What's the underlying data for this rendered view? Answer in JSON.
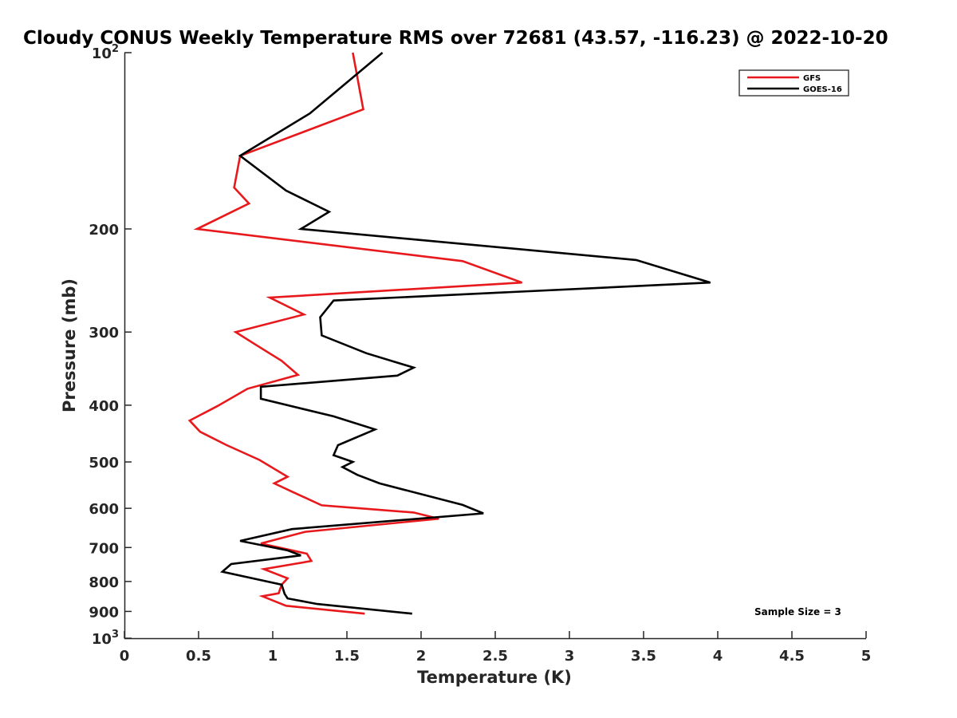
{
  "chart_data": {
    "type": "line",
    "title": "Cloudy CONUS Weekly Temperature RMS over 72681 (43.57, -116.23) @ 2022-10-20",
    "xlabel": "Temperature (K)",
    "ylabel": "Pressure (mb)",
    "xlim": [
      0,
      5
    ],
    "ylim": [
      100,
      1000
    ],
    "yscale": "log",
    "yreversed": true,
    "grid": false,
    "legend_position": "top-right",
    "x_ticks": [
      "0",
      "0.5",
      "1",
      "1.5",
      "2",
      "2.5",
      "3",
      "3.5",
      "4",
      "4.5",
      "5"
    ],
    "x_tick_values": [
      0,
      0.5,
      1,
      1.5,
      2,
      2.5,
      3,
      3.5,
      4,
      4.5,
      5
    ],
    "y_ticks": [
      {
        "value": 100,
        "base": "10",
        "exp": "2"
      },
      {
        "value": 200,
        "label": "200"
      },
      {
        "value": 300,
        "label": "300"
      },
      {
        "value": 400,
        "label": "400"
      },
      {
        "value": 500,
        "label": "500"
      },
      {
        "value": 600,
        "label": "600"
      },
      {
        "value": 700,
        "label": "700"
      },
      {
        "value": 800,
        "label": "800"
      },
      {
        "value": 900,
        "label": "900"
      },
      {
        "value": 1000,
        "base": "10",
        "exp": "3"
      }
    ],
    "series": [
      {
        "name": "GFS",
        "color": "#e8191c",
        "points": [
          [
            1.54,
            100
          ],
          [
            1.61,
            125
          ],
          [
            0.78,
            150
          ],
          [
            0.74,
            170
          ],
          [
            0.84,
            181
          ],
          [
            0.49,
            200
          ],
          [
            2.28,
            227
          ],
          [
            2.68,
            247
          ],
          [
            0.98,
            262
          ],
          [
            1.21,
            280
          ],
          [
            0.75,
            300
          ],
          [
            0.9,
            317
          ],
          [
            1.06,
            336
          ],
          [
            1.17,
            355
          ],
          [
            0.83,
            375
          ],
          [
            0.63,
            401
          ],
          [
            0.44,
            425
          ],
          [
            0.51,
            444
          ],
          [
            0.69,
            468
          ],
          [
            0.91,
            496
          ],
          [
            1.1,
            530
          ],
          [
            1.01,
            544
          ],
          [
            1.13,
            562
          ],
          [
            1.33,
            593
          ],
          [
            1.95,
            610
          ],
          [
            2.12,
            625
          ],
          [
            1.22,
            658
          ],
          [
            0.92,
            689
          ],
          [
            1.23,
            717
          ],
          [
            1.26,
            738
          ],
          [
            0.94,
            762
          ],
          [
            1.1,
            790
          ],
          [
            1.06,
            810
          ],
          [
            1.04,
            838
          ],
          [
            0.93,
            848
          ],
          [
            1.09,
            880
          ],
          [
            1.62,
            908
          ]
        ]
      },
      {
        "name": "GOES-16",
        "color": "#000000",
        "points": [
          [
            1.74,
            100
          ],
          [
            1.25,
            127
          ],
          [
            0.78,
            150
          ],
          [
            1.09,
            172
          ],
          [
            1.38,
            187
          ],
          [
            1.19,
            200
          ],
          [
            3.45,
            226
          ],
          [
            3.95,
            247
          ],
          [
            1.41,
            265
          ],
          [
            1.32,
            283
          ],
          [
            1.33,
            304
          ],
          [
            1.63,
            326
          ],
          [
            1.95,
            345
          ],
          [
            1.84,
            356
          ],
          [
            0.92,
            372
          ],
          [
            0.92,
            390
          ],
          [
            1.41,
            418
          ],
          [
            1.69,
            440
          ],
          [
            1.44,
            468
          ],
          [
            1.41,
            487
          ],
          [
            1.54,
            500
          ],
          [
            1.47,
            510
          ],
          [
            1.57,
            526
          ],
          [
            1.72,
            544
          ],
          [
            2.28,
            592
          ],
          [
            2.42,
            612
          ],
          [
            1.13,
            651
          ],
          [
            0.78,
            682
          ],
          [
            1.1,
            708
          ],
          [
            1.19,
            722
          ],
          [
            0.72,
            747
          ],
          [
            0.66,
            770
          ],
          [
            1.06,
            810
          ],
          [
            1.08,
            840
          ],
          [
            1.1,
            855
          ],
          [
            1.3,
            874
          ],
          [
            1.94,
            908
          ]
        ]
      }
    ],
    "annotation": "Sample Size = 3"
  }
}
